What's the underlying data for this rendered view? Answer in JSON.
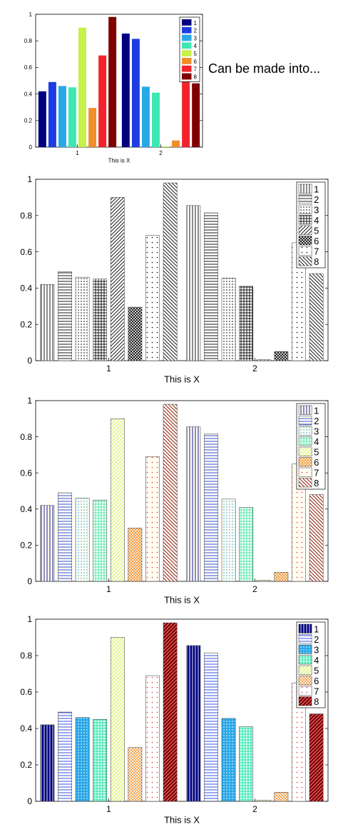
{
  "caption": "Can be made into...",
  "colors": [
    "#000080",
    "#1c3de2",
    "#29a8e8",
    "#3ee8b2",
    "#c6f04a",
    "#f08e2a",
    "#f2232a",
    "#800000"
  ],
  "chart_data": [
    {
      "type": "bar",
      "style": "color-filled",
      "categories": [
        "1",
        "2"
      ],
      "series": [
        {
          "name": "1",
          "values": [
            0.42,
            0.855
          ]
        },
        {
          "name": "2",
          "values": [
            0.49,
            0.815
          ]
        },
        {
          "name": "3",
          "values": [
            0.46,
            0.455
          ]
        },
        {
          "name": "4",
          "values": [
            0.45,
            0.41
          ]
        },
        {
          "name": "5",
          "values": [
            0.9,
            0.005
          ]
        },
        {
          "name": "6",
          "values": [
            0.295,
            0.05
          ]
        },
        {
          "name": "7",
          "values": [
            0.69,
            0.65
          ]
        },
        {
          "name": "8",
          "values": [
            0.98,
            0.48
          ]
        }
      ],
      "xlabel": "This is X",
      "ylim": [
        0,
        1
      ],
      "yticks": [
        "0",
        "0.2",
        "0.4",
        "0.6",
        "0.8",
        "1"
      ],
      "legend": "top-right",
      "grid": false
    },
    {
      "type": "bar",
      "style": "black-and-white hatch patterns",
      "categories": [
        "1",
        "2"
      ],
      "series": [
        {
          "name": "1",
          "values": [
            0.42,
            0.855
          ]
        },
        {
          "name": "2",
          "values": [
            0.49,
            0.815
          ]
        },
        {
          "name": "3",
          "values": [
            0.46,
            0.455
          ]
        },
        {
          "name": "4",
          "values": [
            0.45,
            0.41
          ]
        },
        {
          "name": "5",
          "values": [
            0.9,
            0.005
          ]
        },
        {
          "name": "6",
          "values": [
            0.295,
            0.05
          ]
        },
        {
          "name": "7",
          "values": [
            0.69,
            0.65
          ]
        },
        {
          "name": "8",
          "values": [
            0.98,
            0.48
          ]
        }
      ],
      "xlabel": "This is X",
      "ylim": [
        0,
        1
      ],
      "yticks": [
        "0",
        "0.2",
        "0.4",
        "0.6",
        "0.8",
        "1"
      ],
      "legend": "top-right",
      "grid": false
    },
    {
      "type": "bar",
      "style": "colored hatch patterns on light background",
      "categories": [
        "1",
        "2"
      ],
      "series": [
        {
          "name": "1",
          "values": [
            0.42,
            0.855
          ]
        },
        {
          "name": "2",
          "values": [
            0.49,
            0.815
          ]
        },
        {
          "name": "3",
          "values": [
            0.46,
            0.455
          ]
        },
        {
          "name": "4",
          "values": [
            0.45,
            0.41
          ]
        },
        {
          "name": "5",
          "values": [
            0.9,
            0.005
          ]
        },
        {
          "name": "6",
          "values": [
            0.295,
            0.05
          ]
        },
        {
          "name": "7",
          "values": [
            0.69,
            0.65
          ]
        },
        {
          "name": "8",
          "values": [
            0.98,
            0.48
          ]
        }
      ],
      "xlabel": "This is X",
      "ylim": [
        0,
        1
      ],
      "yticks": [
        "0",
        "0.2",
        "0.4",
        "0.6",
        "0.8",
        "1"
      ],
      "legend": "top-right",
      "grid": false
    },
    {
      "type": "bar",
      "style": "mixed solid color and hatch patterns",
      "categories": [
        "1",
        "2"
      ],
      "series": [
        {
          "name": "1",
          "values": [
            0.42,
            0.855
          ]
        },
        {
          "name": "2",
          "values": [
            0.49,
            0.815
          ]
        },
        {
          "name": "3",
          "values": [
            0.46,
            0.455
          ]
        },
        {
          "name": "4",
          "values": [
            0.45,
            0.41
          ]
        },
        {
          "name": "5",
          "values": [
            0.9,
            0.005
          ]
        },
        {
          "name": "6",
          "values": [
            0.295,
            0.05
          ]
        },
        {
          "name": "7",
          "values": [
            0.69,
            0.65
          ]
        },
        {
          "name": "8",
          "values": [
            0.98,
            0.48
          ]
        }
      ],
      "xlabel": "This is X",
      "ylim": [
        0,
        1
      ],
      "yticks": [
        "0",
        "0.2",
        "0.4",
        "0.6",
        "0.8",
        "1"
      ],
      "legend": "top-right",
      "grid": false
    }
  ]
}
